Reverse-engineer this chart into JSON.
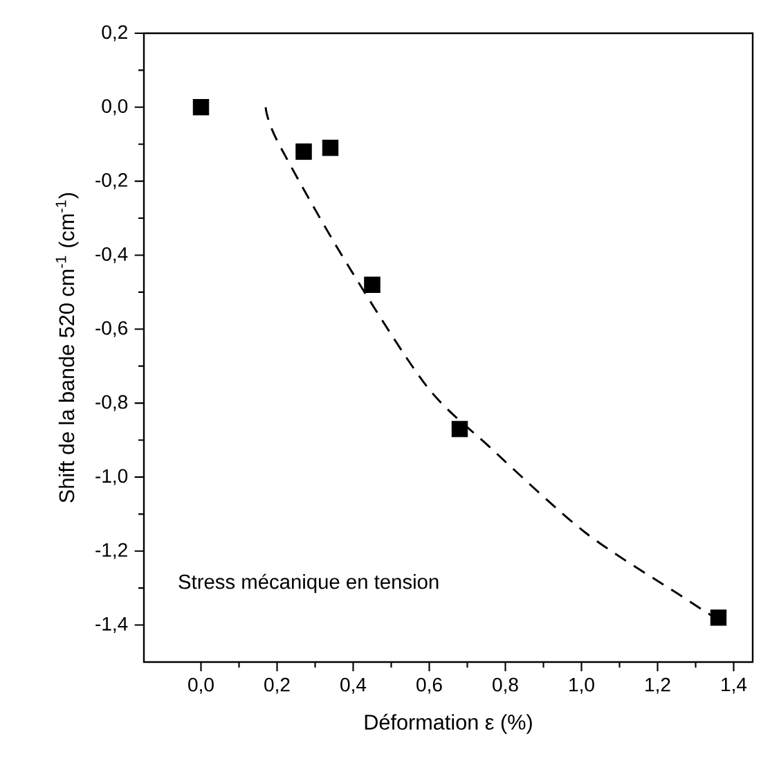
{
  "chart_data": {
    "type": "scatter",
    "xlabel": "Déformation ε (%)",
    "ylabel": "Shift de la bande 520 cm$^{-1}$ (cm$^{-1}$)",
    "annotations": [
      "Stress mécanique en tension"
    ],
    "series": [
      {
        "color": "#000000",
        "marker": "square",
        "x": [
          0,
          0.27,
          0.34,
          0.45,
          0.68,
          1.36
        ],
        "values": [
          0,
          -0.12,
          -0.11,
          -0.48,
          -0.87,
          -1.38
        ]
      },
      {
        "type": "line",
        "color": "#000000",
        "line_style": "dashed",
        "marker": "none",
        "x": [
          0.17,
          0.2,
          0.37,
          0.59,
          0.76,
          1.01,
          1.26,
          1.35
        ],
        "values": [
          0,
          -0.09,
          -0.4,
          -0.75,
          -0.92,
          -1.15,
          -1.32,
          -1.38
        ]
      }
    ],
    "xlim": [
      -0.15,
      1.45
    ],
    "ylim": [
      -1.5,
      0.2
    ],
    "xticks": [
      {
        "value": 0,
        "label": "0,0"
      },
      {
        "value": 0.2,
        "label": "0,2"
      },
      {
        "value": 0.4,
        "label": "0,4"
      },
      {
        "value": 0.6,
        "label": "0,6"
      },
      {
        "value": 0.8,
        "label": "0,8"
      },
      {
        "value": 1.0,
        "label": "1,0"
      },
      {
        "value": 1.2,
        "label": "1,2"
      },
      {
        "value": 1.4,
        "label": "1,4"
      }
    ],
    "yticks": [
      {
        "value": -1.4,
        "label": "-1,4"
      },
      {
        "value": -1.2,
        "label": "-1,2"
      },
      {
        "value": -1.0,
        "label": "-1,0"
      },
      {
        "value": -0.8,
        "label": "-0,8"
      },
      {
        "value": -0.6,
        "label": "-0,6"
      },
      {
        "value": -0.4,
        "label": "-0,4"
      },
      {
        "value": -0.2,
        "label": "-0,2"
      },
      {
        "value": 0.0,
        "label": "0,0"
      },
      {
        "value": 0.2,
        "label": "0,2"
      }
    ],
    "grid": false,
    "legend": false
  }
}
